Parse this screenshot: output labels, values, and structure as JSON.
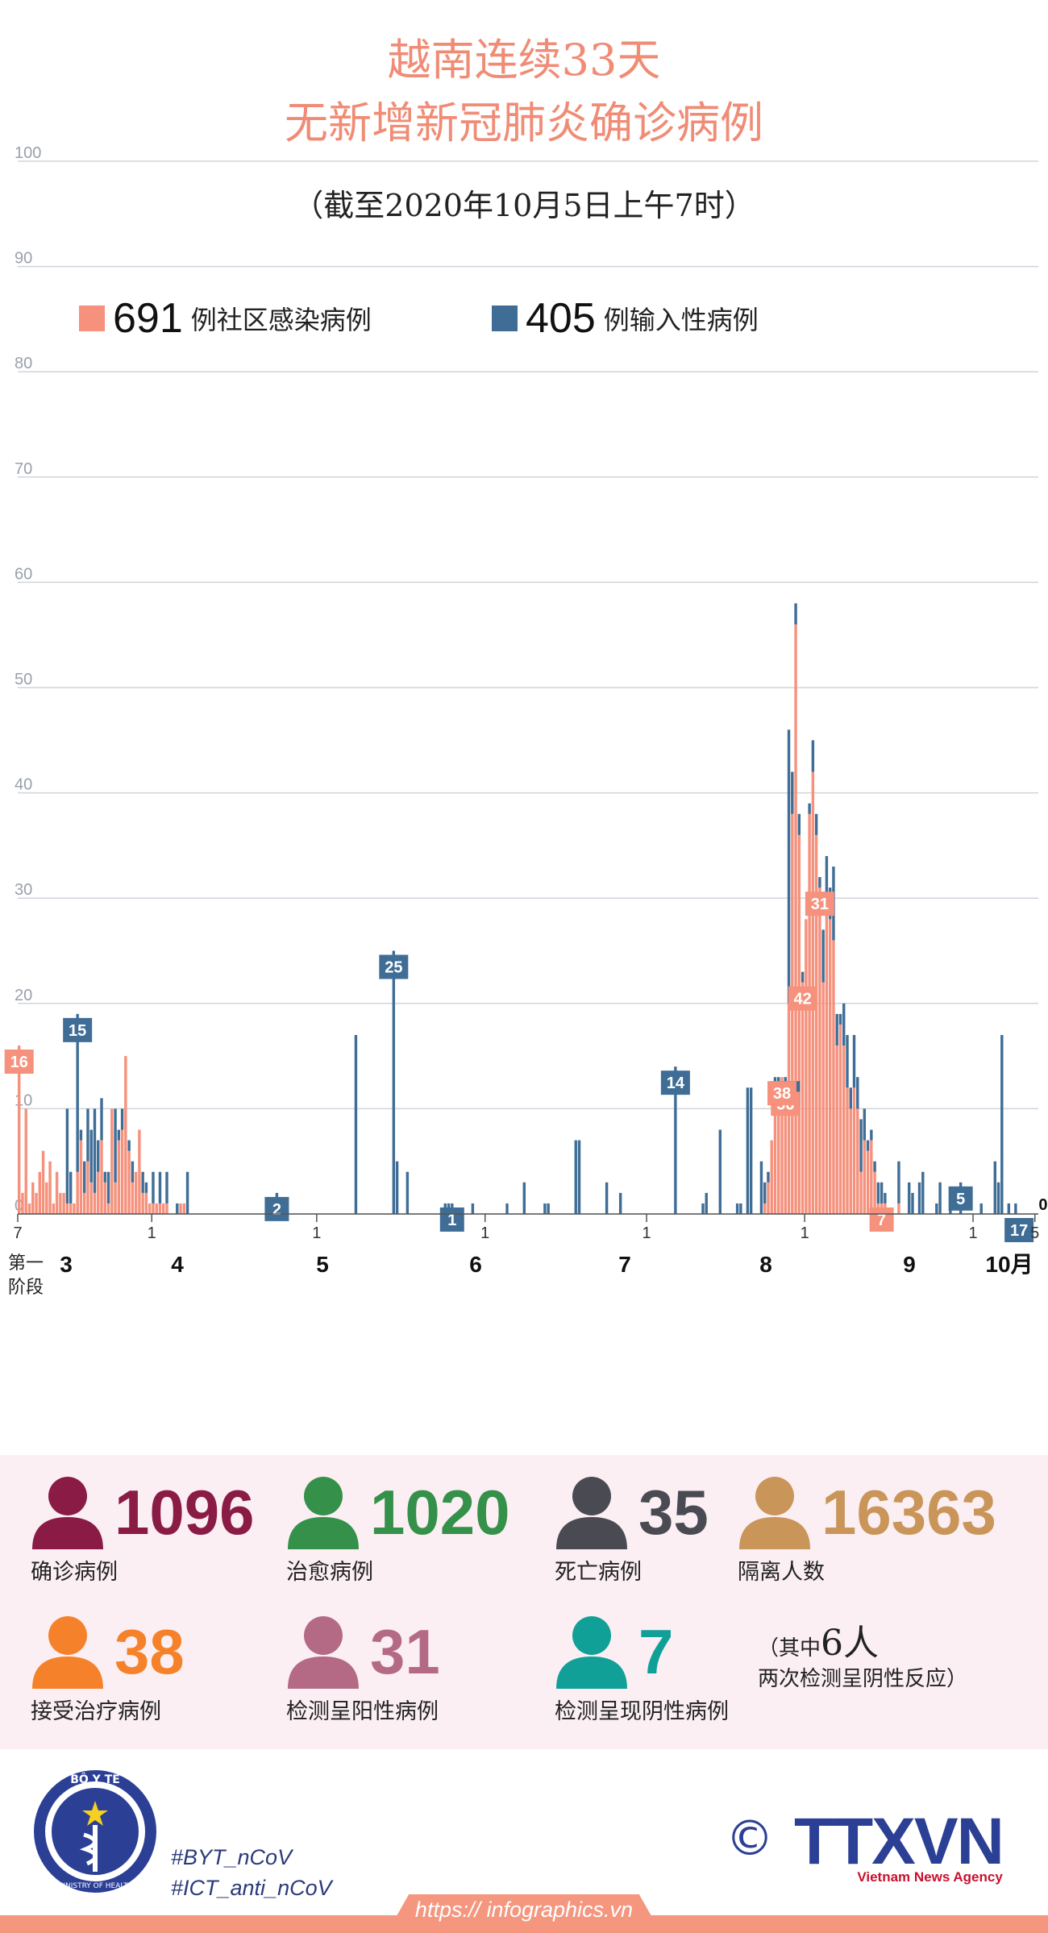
{
  "header": {
    "title_line1": "越南连续33天",
    "title_line2": "无新增新冠肺炎确诊病例",
    "subtitle": "（截至2020年10月5日上午7时）"
  },
  "legend": {
    "community": {
      "count": "691",
      "label": "例社区感染病例",
      "color": "#f5917c"
    },
    "imported": {
      "count": "405",
      "label": "例输入性病例",
      "color": "#3f6d96"
    }
  },
  "chart_data": {
    "type": "bar",
    "stacked": true,
    "ylim": [
      0,
      100
    ],
    "y_ticks": [
      "0",
      "10",
      "20",
      "30",
      "40",
      "50",
      "60",
      "70",
      "80",
      "90",
      "100"
    ],
    "x_tick_labels": [
      "7",
      "1",
      "1",
      "1",
      "1",
      "1",
      "1",
      "5"
    ],
    "month_labels": [
      "第一阶段",
      "3",
      "4",
      "5",
      "6",
      "7",
      "8",
      "9",
      "10月"
    ],
    "series": [
      {
        "name": "例社区感染病例",
        "color": "#f5917c",
        "values": [
          16,
          2,
          10,
          1,
          3,
          2,
          4,
          6,
          3,
          5,
          1,
          4,
          2,
          2,
          1,
          1,
          1,
          4,
          7,
          2,
          5,
          3,
          2,
          4,
          7,
          3,
          1,
          10,
          3,
          7,
          8,
          15,
          6,
          3,
          4,
          8,
          2,
          2,
          1,
          1,
          1,
          1,
          1,
          1,
          0,
          0,
          0,
          1,
          1,
          0,
          0,
          0,
          0,
          0,
          0,
          0,
          0,
          0,
          0,
          0,
          0,
          0,
          0,
          0,
          0,
          0,
          0,
          0,
          0,
          0,
          0,
          0,
          0,
          0,
          0,
          0,
          0,
          0,
          0,
          0,
          0,
          0,
          0,
          0,
          0,
          0,
          0,
          0,
          0,
          0,
          0,
          0,
          0,
          0,
          0,
          0,
          0,
          0,
          0,
          0,
          0,
          0,
          0,
          0,
          0,
          0,
          0,
          0,
          0,
          0,
          0,
          0,
          0,
          0,
          0,
          0,
          0,
          0,
          0,
          0,
          0,
          0,
          0,
          0,
          0,
          0,
          0,
          0,
          0,
          0,
          0,
          0,
          0,
          0,
          0,
          0,
          0,
          0,
          0,
          0,
          0,
          0,
          0,
          0,
          0,
          0,
          0,
          0,
          0,
          0,
          0,
          0,
          0,
          0,
          0,
          0,
          0,
          0,
          0,
          0,
          0,
          0,
          0,
          0,
          0,
          0,
          0,
          0,
          0,
          0,
          0,
          0,
          0,
          0,
          0,
          0,
          0,
          0,
          0,
          0,
          0,
          0,
          0,
          0,
          0,
          0,
          0,
          0,
          0,
          0,
          0,
          0,
          0,
          0,
          0,
          0,
          0,
          0,
          0,
          0,
          0,
          0,
          0,
          0,
          0,
          0,
          0,
          0,
          0,
          0,
          0,
          0,
          0,
          0,
          0,
          0,
          0,
          1,
          3,
          7,
          11,
          10,
          13,
          12,
          20,
          38,
          56,
          36,
          22,
          28,
          38,
          42,
          36,
          31,
          22,
          30,
          28,
          26,
          16,
          18,
          16,
          12,
          10,
          12,
          10,
          4,
          7,
          6,
          7,
          4,
          1,
          1,
          1,
          0,
          0,
          0,
          1,
          0,
          0,
          0,
          0,
          0,
          0,
          0,
          0,
          0,
          0,
          0,
          0,
          0,
          0,
          0,
          0,
          0,
          0,
          0,
          0,
          0,
          0,
          0,
          0,
          0,
          0,
          0,
          0,
          0,
          0,
          0,
          0,
          0,
          0,
          0,
          0,
          0,
          0,
          0,
          0
        ]
      },
      {
        "name": "例输入性病例",
        "color": "#3f6d96",
        "values": [
          0,
          0,
          0,
          0,
          0,
          0,
          0,
          0,
          0,
          0,
          0,
          0,
          0,
          0,
          9,
          3,
          0,
          15,
          1,
          3,
          5,
          5,
          8,
          3,
          4,
          1,
          3,
          0,
          7,
          1,
          2,
          0,
          1,
          2,
          0,
          0,
          2,
          1,
          0,
          3,
          0,
          3,
          0,
          3,
          0,
          0,
          1,
          0,
          0,
          4,
          0,
          0,
          0,
          0,
          0,
          0,
          0,
          0,
          0,
          0,
          0,
          0,
          0,
          0,
          0,
          0,
          0,
          0,
          0,
          0,
          0,
          0,
          0,
          0,
          0,
          2,
          0,
          0,
          0,
          0,
          0,
          0,
          0,
          0,
          0,
          0,
          0,
          0,
          0,
          0,
          0,
          0,
          0,
          0,
          0,
          0,
          0,
          0,
          17,
          0,
          0,
          0,
          0,
          0,
          0,
          0,
          0,
          0,
          0,
          25,
          5,
          0,
          0,
          4,
          0,
          0,
          0,
          0,
          0,
          0,
          0,
          0,
          0,
          0,
          1,
          1,
          1,
          0,
          0,
          0,
          0,
          0,
          1,
          0,
          0,
          0,
          0,
          0,
          0,
          0,
          0,
          0,
          1,
          0,
          0,
          0,
          0,
          3,
          0,
          0,
          0,
          0,
          0,
          1,
          1,
          0,
          0,
          0,
          0,
          0,
          0,
          0,
          7,
          7,
          0,
          0,
          0,
          0,
          0,
          0,
          0,
          3,
          0,
          0,
          0,
          2,
          0,
          0,
          0,
          0,
          0,
          0,
          0,
          0,
          0,
          0,
          0,
          0,
          0,
          0,
          0,
          14,
          0,
          0,
          0,
          0,
          0,
          0,
          0,
          1,
          2,
          0,
          0,
          0,
          8,
          0,
          0,
          0,
          0,
          1,
          1,
          0,
          12,
          12,
          0,
          0,
          5,
          2,
          1,
          0,
          2,
          3,
          0,
          1,
          26,
          4,
          2,
          2,
          1,
          0,
          1,
          3,
          2,
          1,
          5,
          4,
          3,
          7,
          3,
          1,
          4,
          5,
          2,
          5,
          3,
          5,
          3,
          1,
          1,
          1,
          2,
          2,
          1,
          0,
          0,
          0,
          4,
          0,
          0,
          3,
          2,
          0,
          3,
          4,
          0,
          0,
          0,
          1,
          3,
          0,
          0,
          2,
          0,
          0,
          3,
          0,
          0,
          0,
          0,
          0,
          1,
          0,
          0,
          0,
          5,
          3,
          17,
          0,
          1,
          0,
          1
        ]
      }
    ],
    "bar_labels": [
      {
        "index": 0,
        "value": "16",
        "series": 0
      },
      {
        "index": 17,
        "value": "15",
        "series": 1
      },
      {
        "index": 75,
        "value": "2",
        "series": 1
      },
      {
        "index": 109,
        "value": "25",
        "series": 1
      },
      {
        "index": 126,
        "value": "1",
        "series": 1
      },
      {
        "index": 191,
        "value": "14",
        "series": 1
      },
      {
        "index": 223,
        "value": "26",
        "series": 1
      },
      {
        "index": 223,
        "value": "56",
        "series": 0
      },
      {
        "index": 222,
        "value": "38",
        "series": 0
      },
      {
        "index": 228,
        "value": "42",
        "series": 0
      },
      {
        "index": 233,
        "value": "31",
        "series": 0
      },
      {
        "index": 251,
        "value": "7",
        "series": 0
      },
      {
        "index": 274,
        "value": "5",
        "series": 1
      },
      {
        "index": 291,
        "value": "17",
        "series": 1
      },
      {
        "index": 298,
        "value": "0",
        "series": 1
      }
    ]
  },
  "stats": [
    {
      "value": "1096",
      "label": "确诊病例",
      "color": "#8a1b45",
      "icon": "person-icon"
    },
    {
      "value": "1020",
      "label": "治愈病例",
      "color": "#35904a",
      "icon": "person-icon"
    },
    {
      "value": "35",
      "label": "死亡病例",
      "color": "#4a4a52",
      "icon": "person-icon"
    },
    {
      "value": "16363",
      "label": "隔离人数",
      "color": "#c99559",
      "icon": "person-icon"
    },
    {
      "value": "38",
      "label": "接受治疗病例",
      "color": "#f5822a",
      "icon": "person-icon"
    },
    {
      "value": "31",
      "label": "检测呈阳性病例",
      "color": "#b46a84",
      "icon": "person-icon"
    },
    {
      "value": "7",
      "label": "检测呈现阴性病例",
      "color": "#11a098",
      "icon": "person-icon"
    }
  ],
  "note": {
    "open": "（其中",
    "number": "6人",
    "close": "两次检测呈阴性反应）"
  },
  "footer": {
    "logo_ring_text": "BỘ Y TẾ",
    "logo_sub_text": "MINISTRY OF HEALTH",
    "hashtag1": "#BYT_nCoV",
    "hashtag2": "#ICT_anti_nCoV",
    "copyright": "©",
    "agency_logo": "TTXVN",
    "agency_name": "Vietnam News Agency",
    "url": "https:// infographics.vn"
  }
}
